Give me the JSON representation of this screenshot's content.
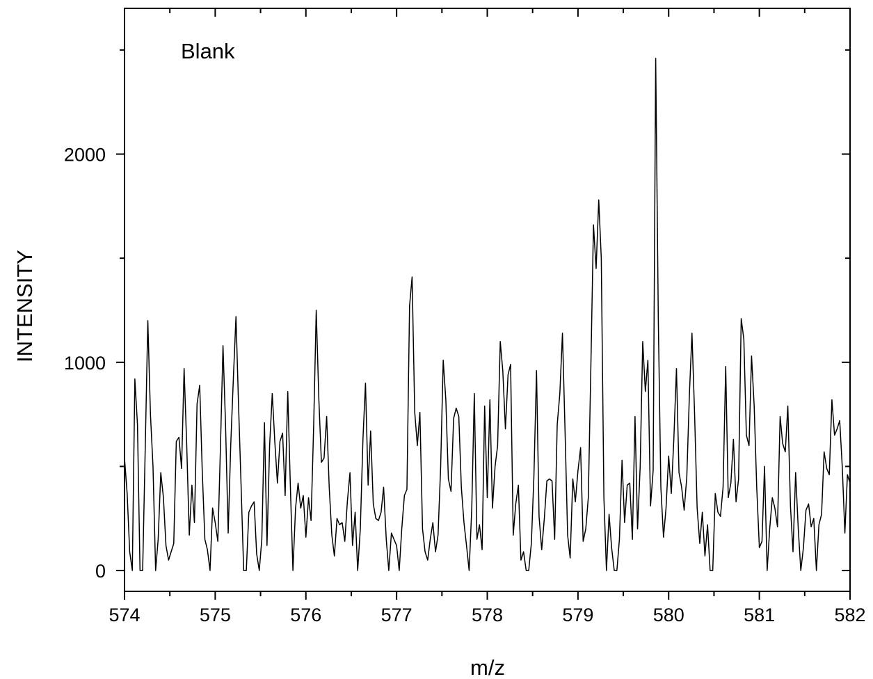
{
  "chart_data": {
    "type": "line",
    "annotation": "Blank",
    "x_label": "m/z",
    "y_label": "INTENSITY",
    "xlim": [
      574,
      582
    ],
    "xticks": [
      574,
      575,
      576,
      577,
      578,
      579,
      580,
      581,
      582
    ],
    "xminor": [
      574.5,
      575.5,
      576.5,
      577.5,
      578.5,
      579.5,
      580.5,
      581.5
    ],
    "ylim": [
      -100,
      2700
    ],
    "yticks": [
      0,
      1000,
      2000
    ],
    "yminor": [
      500,
      1500,
      2500
    ],
    "grid": false,
    "x": [
      574,
      574.029,
      574.057,
      574.086,
      574.114,
      574.143,
      574.171,
      574.2,
      574.229,
      574.257,
      574.286,
      574.314,
      574.343,
      574.371,
      574.4,
      574.429,
      574.457,
      574.486,
      574.514,
      574.543,
      574.571,
      574.6,
      574.629,
      574.657,
      574.686,
      574.714,
      574.743,
      574.771,
      574.8,
      574.829,
      574.857,
      574.886,
      574.914,
      574.943,
      574.971,
      575,
      575.029,
      575.057,
      575.086,
      575.114,
      575.143,
      575.171,
      575.2,
      575.229,
      575.257,
      575.286,
      575.314,
      575.343,
      575.371,
      575.4,
      575.429,
      575.457,
      575.486,
      575.514,
      575.543,
      575.571,
      575.6,
      575.629,
      575.657,
      575.686,
      575.714,
      575.743,
      575.771,
      575.8,
      575.829,
      575.857,
      575.886,
      575.914,
      575.943,
      575.971,
      576,
      576.029,
      576.057,
      576.086,
      576.114,
      576.143,
      576.171,
      576.2,
      576.229,
      576.257,
      576.286,
      576.314,
      576.343,
      576.371,
      576.4,
      576.429,
      576.457,
      576.486,
      576.514,
      576.543,
      576.571,
      576.6,
      576.629,
      576.657,
      576.686,
      576.714,
      576.743,
      576.771,
      576.8,
      576.829,
      576.857,
      576.886,
      576.914,
      576.943,
      576.971,
      577,
      577.029,
      577.057,
      577.086,
      577.114,
      577.143,
      577.171,
      577.2,
      577.229,
      577.257,
      577.286,
      577.314,
      577.343,
      577.371,
      577.4,
      577.429,
      577.457,
      577.486,
      577.514,
      577.543,
      577.571,
      577.6,
      577.629,
      577.657,
      577.686,
      577.714,
      577.743,
      577.771,
      577.8,
      577.829,
      577.857,
      577.886,
      577.914,
      577.943,
      577.971,
      578,
      578.029,
      578.057,
      578.086,
      578.114,
      578.143,
      578.171,
      578.2,
      578.229,
      578.257,
      578.286,
      578.314,
      578.343,
      578.371,
      578.4,
      578.429,
      578.457,
      578.486,
      578.514,
      578.543,
      578.571,
      578.6,
      578.629,
      578.657,
      578.686,
      578.714,
      578.743,
      578.771,
      578.8,
      578.829,
      578.857,
      578.886,
      578.914,
      578.943,
      578.971,
      579,
      579.029,
      579.057,
      579.086,
      579.114,
      579.143,
      579.171,
      579.2,
      579.229,
      579.257,
      579.286,
      579.314,
      579.343,
      579.371,
      579.4,
      579.429,
      579.457,
      579.486,
      579.514,
      579.543,
      579.571,
      579.6,
      579.629,
      579.657,
      579.686,
      579.714,
      579.743,
      579.771,
      579.8,
      579.829,
      579.857,
      579.886,
      579.914,
      579.943,
      579.971,
      580,
      580.029,
      580.057,
      580.086,
      580.114,
      580.143,
      580.171,
      580.2,
      580.229,
      580.257,
      580.286,
      580.314,
      580.343,
      580.371,
      580.4,
      580.429,
      580.457,
      580.486,
      580.514,
      580.543,
      580.571,
      580.6,
      580.629,
      580.657,
      580.686,
      580.714,
      580.743,
      580.771,
      580.8,
      580.829,
      580.857,
      580.886,
      580.914,
      580.943,
      580.971,
      581,
      581.029,
      581.057,
      581.086,
      581.114,
      581.143,
      581.171,
      581.2,
      581.229,
      581.257,
      581.286,
      581.314,
      581.343,
      581.371,
      581.4,
      581.429,
      581.457,
      581.486,
      581.514,
      581.543,
      581.571,
      581.6,
      581.629,
      581.657,
      581.686,
      581.714,
      581.743,
      581.771,
      581.8,
      581.829,
      581.857,
      581.886,
      581.914,
      581.943,
      581.971,
      582
    ],
    "series": [
      {
        "color": "#000000",
        "values": [
          540,
          370,
          90,
          0,
          920,
          700,
          0,
          0,
          600,
          1200,
          750,
          500,
          0,
          150,
          470,
          350,
          120,
          50,
          90,
          130,
          620,
          640,
          490,
          970,
          600,
          170,
          410,
          230,
          800,
          890,
          480,
          150,
          100,
          0,
          300,
          230,
          140,
          580,
          1080,
          700,
          180,
          600,
          920,
          1220,
          800,
          400,
          0,
          0,
          280,
          310,
          330,
          80,
          0,
          150,
          710,
          120,
          600,
          850,
          620,
          420,
          620,
          660,
          360,
          860,
          400,
          0,
          300,
          420,
          300,
          360,
          160,
          350,
          240,
          700,
          1250,
          820,
          520,
          540,
          740,
          400,
          170,
          70,
          250,
          220,
          230,
          140,
          330,
          470,
          120,
          280,
          0,
          200,
          630,
          900,
          410,
          670,
          320,
          250,
          240,
          280,
          400,
          150,
          0,
          180,
          150,
          120,
          0,
          200,
          360,
          390,
          1270,
          1410,
          760,
          600,
          760,
          200,
          90,
          50,
          150,
          230,
          90,
          170,
          500,
          1010,
          820,
          440,
          380,
          730,
          780,
          740,
          400,
          230,
          120,
          0,
          300,
          850,
          150,
          220,
          100,
          790,
          350,
          820,
          300,
          500,
          600,
          1100,
          960,
          680,
          940,
          990,
          170,
          320,
          410,
          50,
          90,
          0,
          0,
          130,
          450,
          960,
          260,
          100,
          250,
          430,
          440,
          430,
          150,
          700,
          850,
          1140,
          680,
          170,
          60,
          440,
          330,
          480,
          590,
          140,
          200,
          350,
          1000,
          1660,
          1450,
          1780,
          1500,
          350,
          0,
          270,
          110,
          0,
          0,
          150,
          530,
          230,
          410,
          420,
          150,
          740,
          200,
          500,
          1100,
          860,
          1010,
          310,
          480,
          2460,
          1200,
          400,
          160,
          300,
          550,
          370,
          630,
          970,
          470,
          400,
          290,
          450,
          850,
          1140,
          750,
          300,
          130,
          280,
          70,
          220,
          0,
          0,
          370,
          280,
          260,
          400,
          980,
          350,
          420,
          630,
          330,
          440,
          1210,
          1110,
          650,
          600,
          1030,
          790,
          400,
          110,
          140,
          500,
          0,
          200,
          350,
          300,
          210,
          740,
          610,
          570,
          790,
          310,
          90,
          470,
          200,
          0,
          110,
          290,
          320,
          210,
          250,
          0,
          220,
          270,
          570,
          490,
          460,
          820,
          650,
          680,
          720,
          500,
          180,
          460,
          420
        ]
      }
    ]
  }
}
